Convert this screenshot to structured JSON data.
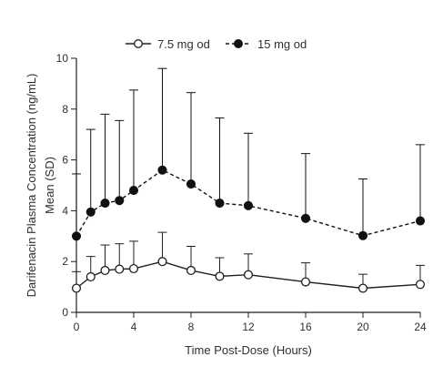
{
  "chart_data": {
    "type": "line",
    "title": "",
    "xlabel": "Time Post-Dose (Hours)",
    "ylabel_line1": "Darifenacin Plasma Concentration (ng/mL)",
    "ylabel_line2": "Mean (SD)",
    "xlim": [
      0,
      24
    ],
    "ylim": [
      0,
      10
    ],
    "x_ticks": [
      0,
      4,
      8,
      12,
      16,
      20,
      24
    ],
    "y_ticks": [
      0,
      2,
      4,
      6,
      8,
      10
    ],
    "grid": false,
    "legend_position": "top-center",
    "series": [
      {
        "name": "7.5 mg od",
        "marker": "open-circle",
        "line_style": "solid",
        "color": "#1f1f1f",
        "x": [
          0,
          1,
          2,
          3,
          4,
          6,
          8,
          10,
          12,
          16,
          20,
          24
        ],
        "y": [
          0.95,
          1.4,
          1.65,
          1.7,
          1.72,
          2.0,
          1.65,
          1.42,
          1.48,
          1.2,
          0.95,
          1.1
        ],
        "sd_upper": [
          1.6,
          2.2,
          2.65,
          2.7,
          2.8,
          3.15,
          2.6,
          2.15,
          2.3,
          1.95,
          1.5,
          1.85
        ]
      },
      {
        "name": "15 mg od",
        "marker": "filled-circle",
        "line_style": "dashed",
        "color": "#111111",
        "x": [
          0,
          1,
          2,
          3,
          4,
          6,
          8,
          10,
          12,
          16,
          20,
          24
        ],
        "y": [
          3.0,
          3.95,
          4.3,
          4.4,
          4.8,
          5.6,
          5.05,
          4.3,
          4.2,
          3.7,
          3.02,
          3.6
        ],
        "sd_upper": [
          5.45,
          7.2,
          7.8,
          7.55,
          8.75,
          9.6,
          8.65,
          7.65,
          7.05,
          6.25,
          5.25,
          6.6
        ]
      }
    ]
  }
}
